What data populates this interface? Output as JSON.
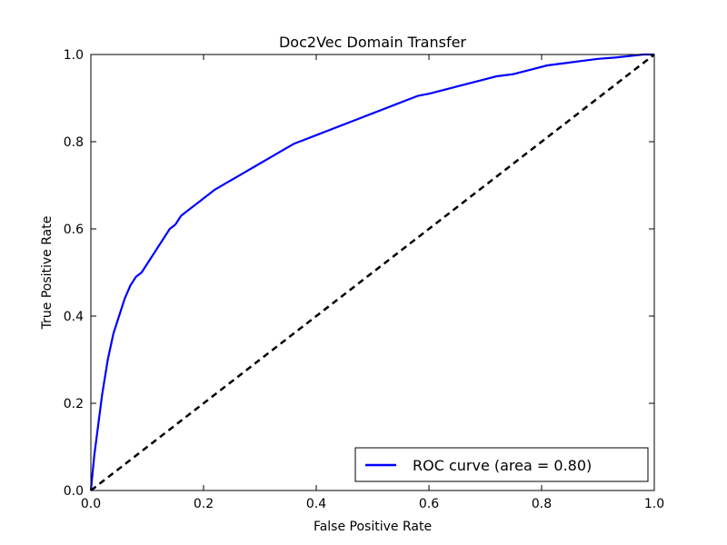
{
  "chart_data": {
    "type": "line",
    "title": "Doc2Vec Domain Transfer",
    "xlabel": "False Positive Rate",
    "ylabel": "True Positive Rate",
    "xlim": [
      0.0,
      1.0
    ],
    "ylim": [
      0.0,
      1.0
    ],
    "xticks": [
      "0.0",
      "0.2",
      "0.4",
      "0.6",
      "0.8",
      "1.0"
    ],
    "yticks": [
      "0.0",
      "0.2",
      "0.4",
      "0.6",
      "0.8",
      "1.0"
    ],
    "grid": false,
    "legend": {
      "placement": "lower-right",
      "entries": [
        "ROC curve (area = 0.80)"
      ]
    },
    "series": [
      {
        "name": "ROC curve (area = 0.80)",
        "color": "#0000ff",
        "style": "solid",
        "x": [
          0.0,
          0.003,
          0.006,
          0.01,
          0.015,
          0.02,
          0.025,
          0.03,
          0.035,
          0.04,
          0.045,
          0.05,
          0.06,
          0.07,
          0.08,
          0.09,
          0.1,
          0.11,
          0.12,
          0.13,
          0.14,
          0.15,
          0.16,
          0.17,
          0.18,
          0.19,
          0.2,
          0.21,
          0.22,
          0.24,
          0.26,
          0.28,
          0.3,
          0.32,
          0.34,
          0.36,
          0.38,
          0.4,
          0.42,
          0.44,
          0.46,
          0.48,
          0.5,
          0.52,
          0.54,
          0.56,
          0.58,
          0.6,
          0.63,
          0.66,
          0.69,
          0.72,
          0.75,
          0.78,
          0.81,
          0.84,
          0.87,
          0.9,
          0.93,
          0.96,
          0.98,
          1.0
        ],
        "y": [
          0.0,
          0.04,
          0.08,
          0.12,
          0.17,
          0.22,
          0.26,
          0.3,
          0.33,
          0.36,
          0.38,
          0.4,
          0.44,
          0.47,
          0.49,
          0.5,
          0.52,
          0.54,
          0.56,
          0.58,
          0.6,
          0.61,
          0.63,
          0.64,
          0.65,
          0.66,
          0.67,
          0.68,
          0.69,
          0.705,
          0.72,
          0.735,
          0.75,
          0.765,
          0.78,
          0.795,
          0.805,
          0.815,
          0.825,
          0.835,
          0.845,
          0.855,
          0.865,
          0.875,
          0.885,
          0.895,
          0.905,
          0.91,
          0.92,
          0.93,
          0.94,
          0.95,
          0.955,
          0.965,
          0.975,
          0.98,
          0.985,
          0.99,
          0.993,
          0.997,
          1.0,
          1.0
        ]
      },
      {
        "name": "",
        "color": "#000000",
        "style": "dashed",
        "x": [
          0.0,
          1.0
        ],
        "y": [
          0.0,
          1.0
        ]
      }
    ]
  }
}
